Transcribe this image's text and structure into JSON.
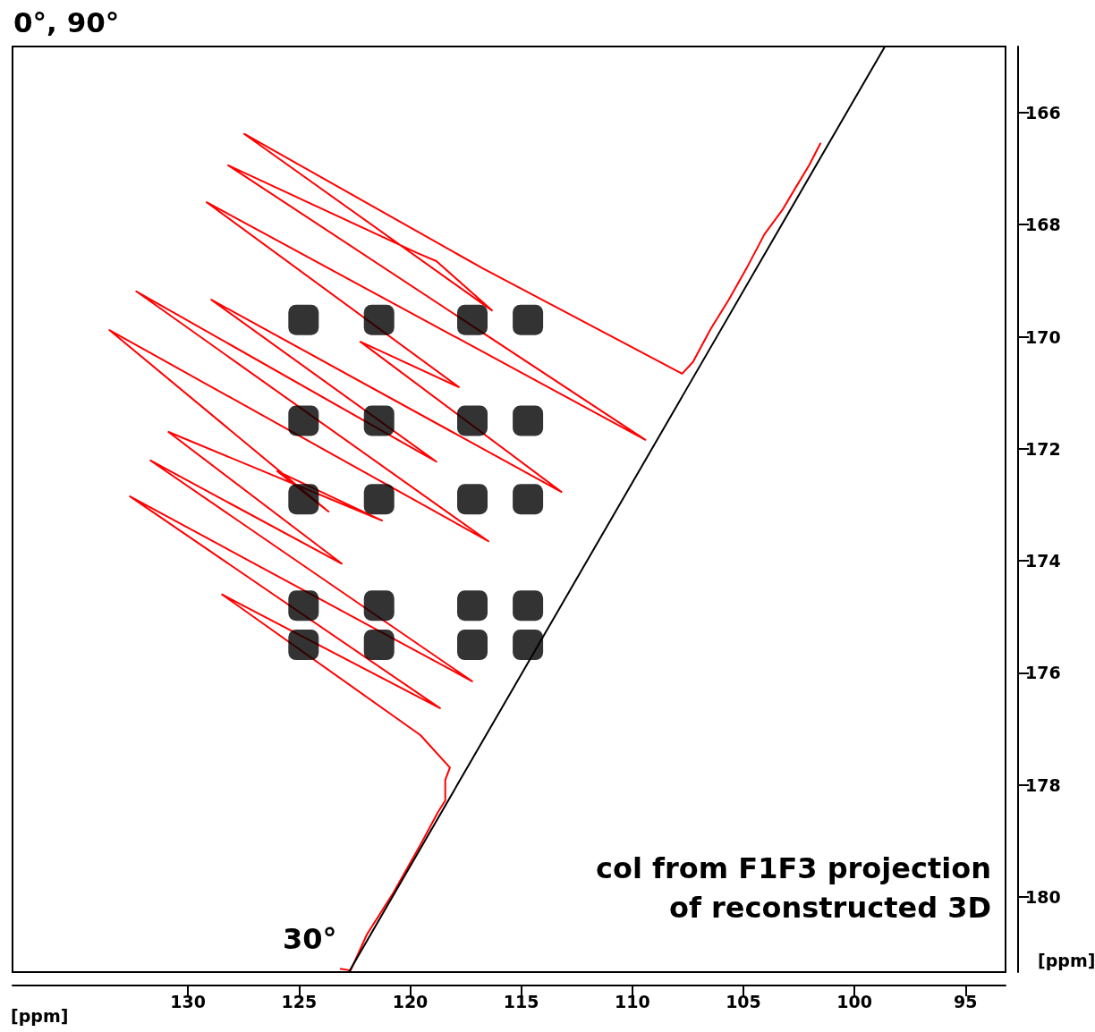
{
  "chart_data": {
    "type": "scatter",
    "title": "0°, 90°",
    "xlabel": "[ppm]",
    "ylabel": "[ppm]",
    "xlim": [
      137.9,
      93.2
    ],
    "ylim": [
      181.34,
      164.82
    ],
    "xticks": [
      130,
      125,
      120,
      115,
      110,
      105,
      100,
      95
    ],
    "yticks": [
      166,
      168,
      170,
      172,
      174,
      176,
      178,
      180
    ],
    "grid": false,
    "annotations": [
      "30°",
      "col from F1F3 projection",
      "of reconstructed 3D"
    ],
    "series": [
      {
        "marker": "square",
        "color": "#000000",
        "x": [
          124.8,
          121.4,
          117.2,
          114.7,
          124.8,
          121.4,
          117.2,
          114.7,
          124.8,
          121.4,
          117.2,
          114.7,
          124.8,
          121.4,
          117.2,
          114.7,
          124.8,
          121.4,
          117.2,
          114.7
        ],
        "values": [
          169.7,
          169.7,
          169.7,
          169.7,
          171.5,
          171.5,
          171.5,
          171.5,
          172.9,
          172.9,
          172.9,
          172.9,
          174.8,
          174.8,
          174.8,
          174.8,
          175.5,
          175.5,
          175.5,
          175.5
        ]
      },
      {
        "type": "line",
        "marker": "none",
        "color": "#ff0000",
        "x": [
          123.16,
          122.68,
          121.95,
          120.75,
          119.54,
          118.74,
          118.42,
          118.42,
          118.21,
          119.54,
          128.47,
          118.66,
          132.61,
          117.21,
          131.69,
          123.08,
          130.88,
          121.27,
          125.98,
          123.68,
          133.54,
          116.48,
          132.33,
          118.82,
          128.95,
          113.19,
          122.24,
          117.81,
          129.16,
          109.41,
          128.19,
          119.66,
          118.82,
          116.32,
          127.47,
          116.73,
          110.29,
          107.76,
          107.27,
          106.47,
          105.66,
          104.86,
          104.05,
          103.25,
          102.65,
          102.04,
          101.52
        ],
        "values": [
          181.28,
          181.31,
          180.67,
          179.92,
          179.07,
          178.48,
          178.28,
          177.91,
          177.69,
          177.11,
          174.6,
          176.63,
          172.85,
          176.15,
          172.21,
          174.05,
          171.7,
          173.28,
          172.4,
          173.12,
          169.88,
          173.65,
          169.19,
          172.23,
          169.34,
          172.77,
          170.09,
          170.9,
          167.6,
          171.84,
          166.94,
          168.51,
          168.65,
          169.53,
          166.38,
          168.78,
          170.13,
          170.66,
          170.45,
          169.86,
          169.34,
          168.78,
          168.17,
          167.74,
          167.34,
          166.94,
          166.54
        ]
      },
      {
        "type": "line",
        "marker": "none",
        "color": "#000000",
        "x": [
          98.63,
          122.76
        ],
        "values": [
          164.82,
          181.34
        ]
      }
    ]
  }
}
